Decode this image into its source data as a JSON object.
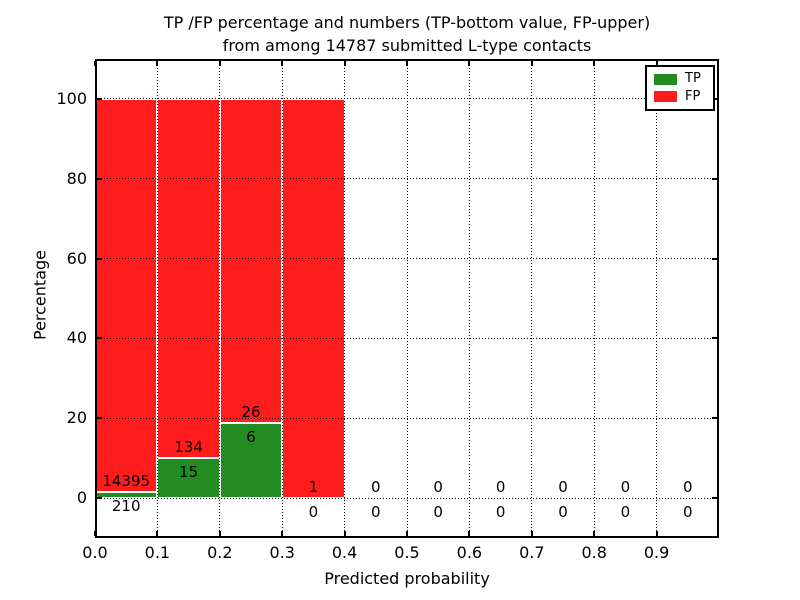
{
  "title": {
    "line1": "TP /FP percentage and numbers (TP-bottom value, FP-upper)",
    "line2": "from among 14787 submitted L-type contacts"
  },
  "chart_data": {
    "type": "bar",
    "stacked": true,
    "title": "TP /FP percentage and numbers (TP-bottom value, FP-upper) from among 14787 submitted L-type contacts",
    "xlabel": "Predicted probability",
    "ylabel": "Percentage",
    "xlim": [
      0.0,
      1.0
    ],
    "ylim": [
      -10,
      110
    ],
    "xticks": [
      0.0,
      0.1,
      0.2,
      0.3,
      0.4,
      0.5,
      0.6,
      0.7,
      0.8,
      0.9
    ],
    "xtick_labels": [
      "0.0",
      "0.1",
      "0.2",
      "0.3",
      "0.4",
      "0.5",
      "0.6",
      "0.7",
      "0.8",
      "0.9"
    ],
    "yticks": [
      0,
      20,
      40,
      60,
      80,
      100
    ],
    "ytick_labels": [
      "0",
      "20",
      "40",
      "60",
      "80",
      "100"
    ],
    "grid": {
      "visible": true,
      "style": "dotted",
      "color": "#000000"
    },
    "colors": {
      "tp": "#228B22",
      "fp": "#FF1C1C",
      "bar_edge": "#FFFFFF"
    },
    "total_contacts": 14787,
    "legend": {
      "position": "upper right",
      "entries": [
        {
          "label": "TP",
          "color": "#228B22"
        },
        {
          "label": "FP",
          "color": "#FF1C1C"
        }
      ]
    },
    "bins": [
      {
        "x_start": 0.0,
        "x_end": 0.1,
        "tp_count": 210,
        "fp_count": 14395,
        "tp_pct": 1.44,
        "fp_pct": 98.56
      },
      {
        "x_start": 0.1,
        "x_end": 0.2,
        "tp_count": 15,
        "fp_count": 134,
        "tp_pct": 10.07,
        "fp_pct": 89.93
      },
      {
        "x_start": 0.2,
        "x_end": 0.3,
        "tp_count": 6,
        "fp_count": 26,
        "tp_pct": 18.75,
        "fp_pct": 81.25
      },
      {
        "x_start": 0.3,
        "x_end": 0.4,
        "tp_count": 0,
        "fp_count": 1,
        "tp_pct": 0,
        "fp_pct": 100
      },
      {
        "x_start": 0.4,
        "x_end": 0.5,
        "tp_count": 0,
        "fp_count": 0,
        "tp_pct": 0,
        "fp_pct": 0
      },
      {
        "x_start": 0.5,
        "x_end": 0.6,
        "tp_count": 0,
        "fp_count": 0,
        "tp_pct": 0,
        "fp_pct": 0
      },
      {
        "x_start": 0.6,
        "x_end": 0.7,
        "tp_count": 0,
        "fp_count": 0,
        "tp_pct": 0,
        "fp_pct": 0
      },
      {
        "x_start": 0.7,
        "x_end": 0.8,
        "tp_count": 0,
        "fp_count": 0,
        "tp_pct": 0,
        "fp_pct": 0
      },
      {
        "x_start": 0.8,
        "x_end": 0.9,
        "tp_count": 0,
        "fp_count": 0,
        "tp_pct": 0,
        "fp_pct": 0
      },
      {
        "x_start": 0.9,
        "x_end": 1.0,
        "tp_count": 0,
        "fp_count": 0,
        "tp_pct": 0,
        "fp_pct": 0
      }
    ]
  }
}
